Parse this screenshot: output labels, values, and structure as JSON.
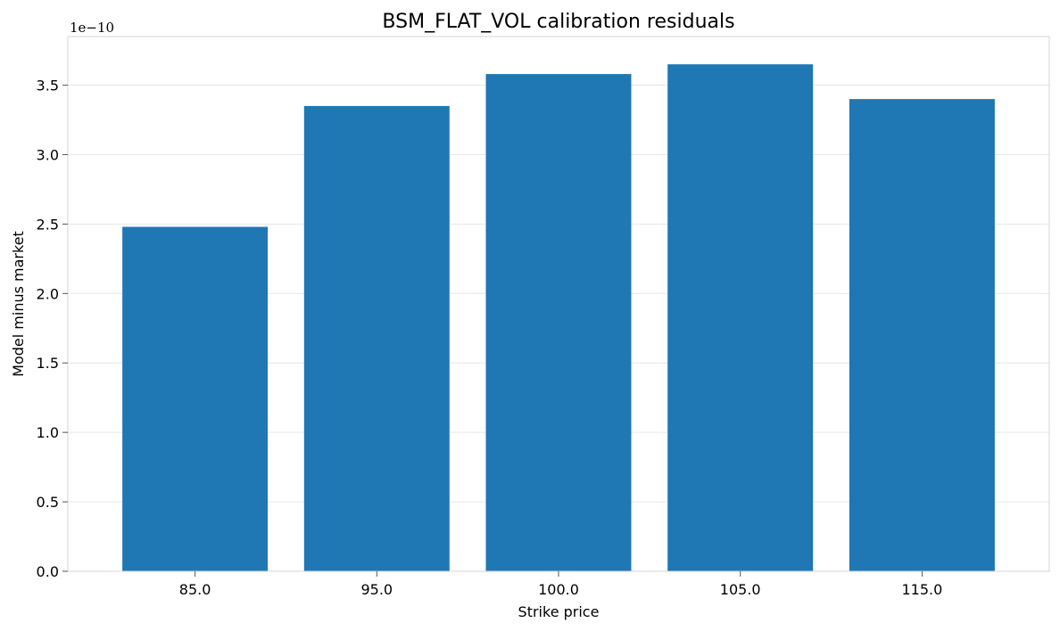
{
  "chart_data": {
    "type": "bar",
    "title": "BSM_FLAT_VOL calibration residuals",
    "xlabel": "Strike price",
    "ylabel": "Model minus market",
    "y_offset_label": "1e−10",
    "categories": [
      "85.0",
      "95.0",
      "100.0",
      "105.0",
      "115.0"
    ],
    "values": [
      2.48e-10,
      3.35e-10,
      3.58e-10,
      3.65e-10,
      3.4e-10
    ],
    "ylim": [
      0,
      3.85e-10
    ],
    "yticks": [
      0,
      5e-11,
      1e-10,
      1.5e-10,
      2e-10,
      2.5e-10,
      3e-10,
      3.5e-10
    ],
    "ytick_labels": [
      "0.0",
      "0.5",
      "1.0",
      "1.5",
      "2.0",
      "2.5",
      "3.0",
      "3.5"
    ],
    "bar_color": "#1f77b4",
    "grid": "y-major",
    "grid_color": "#e6e6e6",
    "spine_color": "#d6d6d6"
  }
}
